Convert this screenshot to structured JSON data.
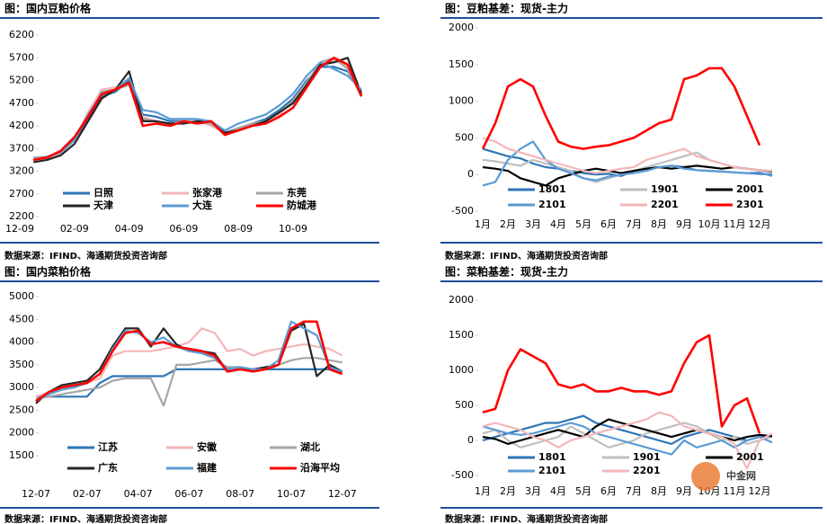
{
  "chart_data": [
    {
      "type": "line",
      "title": "图：国内豆粕价格",
      "source": "数据来源：IFIND、海通期货投资咨询部",
      "categories": [
        "12-09",
        null,
        null,
        null,
        "02-09",
        null,
        null,
        null,
        "04-09",
        null,
        null,
        null,
        "06-09",
        null,
        null,
        null,
        "08-09",
        null,
        null,
        null,
        "10-09",
        null,
        null,
        null,
        null,
        null
      ],
      "ylim": [
        2200,
        6200
      ],
      "yticks": [
        2200,
        2700,
        3200,
        3700,
        4200,
        4700,
        5200,
        5700,
        6200
      ],
      "series": [
        {
          "name": "日照",
          "color": "#2e75b6",
          "values": [
            null,
            3500,
            3500,
            3600,
            3900,
            4350,
            4850,
            4950,
            5200,
            4450,
            4400,
            4300,
            4300,
            4300,
            4250,
            4050,
            4150,
            4250,
            4350,
            4550,
            4800,
            5200,
            5500,
            5500,
            5400,
            4950
          ]
        },
        {
          "name": "张家港",
          "color": "#f4b6b8",
          "values": [
            null,
            3480,
            3500,
            3600,
            3900,
            4500,
            5000,
            5050,
            5100,
            4400,
            4300,
            4250,
            4300,
            4300,
            4200,
            4050,
            4150,
            4200,
            4300,
            4450,
            4750,
            5150,
            5550,
            5650,
            5500,
            4900
          ]
        },
        {
          "name": "东莞",
          "color": "#a6a6a6",
          "values": [
            null,
            3500,
            3520,
            3620,
            3950,
            4400,
            4950,
            5000,
            5100,
            4350,
            4300,
            4250,
            4300,
            4280,
            4250,
            4050,
            4150,
            4250,
            4300,
            4500,
            4750,
            5150,
            5600,
            5700,
            5450,
            4850
          ]
        },
        {
          "name": "天津",
          "color": "#262626",
          "values": [
            null,
            3400,
            3450,
            3550,
            3800,
            4300,
            4800,
            5000,
            5400,
            4300,
            4300,
            4250,
            4250,
            4300,
            4300,
            4050,
            4100,
            4200,
            4300,
            4500,
            4700,
            5100,
            5550,
            5600,
            5700,
            4900
          ]
        },
        {
          "name": "大连",
          "color": "#5b9bd5",
          "values": [
            null,
            3450,
            3520,
            3620,
            3880,
            4450,
            4900,
            5000,
            5250,
            4550,
            4500,
            4350,
            4350,
            4350,
            4300,
            4100,
            4250,
            4350,
            4450,
            4650,
            4900,
            5300,
            5600,
            5450,
            5300,
            5000
          ]
        },
        {
          "name": "防城港",
          "color": "#ff0000",
          "values": [
            null,
            3450,
            3500,
            3650,
            3950,
            4400,
            4900,
            5000,
            5150,
            4200,
            4250,
            4200,
            4300,
            4250,
            4300,
            4000,
            4100,
            4200,
            4250,
            4400,
            4600,
            5050,
            5500,
            5700,
            5550,
            4850
          ]
        }
      ]
    },
    {
      "type": "line",
      "title": "图：豆粕基差：现货-主力",
      "source": "数据来源：IFIND、海通期货投资咨询部",
      "categories": [
        "1月",
        null,
        "2月",
        null,
        "3月",
        null,
        "4月",
        null,
        "5月",
        null,
        "6月",
        null,
        "7月",
        null,
        "8月",
        null,
        "9月",
        null,
        "10月",
        null,
        "11月",
        null,
        "12月",
        null
      ],
      "ylim": [
        -500,
        2000
      ],
      "yticks": [
        -500,
        0,
        500,
        1000,
        1500,
        2000
      ],
      "series": [
        {
          "name": "1801",
          "color": "#2e75b6",
          "values": [
            350,
            300,
            250,
            220,
            150,
            100,
            80,
            50,
            20,
            0,
            10,
            -20,
            50,
            80,
            100,
            120,
            100,
            60,
            50,
            40,
            30,
            20,
            10,
            0
          ]
        },
        {
          "name": "1901",
          "color": "#bfbfbf",
          "values": [
            200,
            180,
            150,
            120,
            200,
            150,
            100,
            50,
            -50,
            -100,
            -50,
            0,
            50,
            100,
            150,
            200,
            250,
            300,
            200,
            150,
            100,
            80,
            60,
            50
          ]
        },
        {
          "name": "2001",
          "color": "#000000",
          "values": [
            100,
            80,
            50,
            -50,
            -100,
            -150,
            -50,
            0,
            50,
            80,
            50,
            20,
            50,
            80,
            100,
            80,
            100,
            120,
            100,
            80,
            100,
            80,
            60,
            40
          ]
        },
        {
          "name": "2101",
          "color": "#5b9bd5",
          "values": [
            -150,
            -100,
            200,
            350,
            450,
            200,
            80,
            20,
            -50,
            -80,
            -30,
            0,
            20,
            50,
            100,
            120,
            80,
            60,
            50,
            40,
            30,
            20,
            30,
            -20
          ]
        },
        {
          "name": "2201",
          "color": "#f4b6b8",
          "values": [
            500,
            450,
            350,
            300,
            250,
            200,
            150,
            100,
            50,
            20,
            50,
            80,
            100,
            200,
            250,
            300,
            350,
            250,
            200,
            150,
            100,
            80,
            60,
            50
          ]
        },
        {
          "name": "2301",
          "color": "#ff0000",
          "values": [
            350,
            700,
            1200,
            1300,
            1200,
            800,
            450,
            380,
            350,
            380,
            400,
            450,
            500,
            600,
            700,
            750,
            1300,
            1350,
            1450,
            1450,
            1200,
            800,
            400,
            null
          ]
        }
      ]
    },
    {
      "type": "line",
      "title": "图：国内菜粕价格",
      "source": "数据来源：IFIND、海通期货投资咨询部",
      "categories": [
        "12-07",
        null,
        null,
        null,
        "02-07",
        null,
        null,
        null,
        "04-07",
        null,
        null,
        null,
        "06-07",
        null,
        null,
        null,
        "08-07",
        null,
        null,
        null,
        "10-07",
        null,
        null,
        null,
        "12-07"
      ],
      "ylim": [
        1500,
        5000
      ],
      "yticks": [
        1500,
        2000,
        2500,
        3000,
        3500,
        4000,
        4500,
        5000
      ],
      "series": [
        {
          "name": "江苏",
          "color": "#2e75b6",
          "values": [
            2800,
            2800,
            2800,
            2800,
            2800,
            3100,
            3250,
            3250,
            3250,
            3250,
            3250,
            3400,
            3400,
            3400,
            3400,
            3400,
            3400,
            3400,
            3400,
            3400,
            3400,
            3400,
            3400,
            3400,
            3350
          ]
        },
        {
          "name": "安徽",
          "color": "#f4b6b8",
          "values": [
            2800,
            2900,
            3000,
            3050,
            3100,
            3200,
            3700,
            3800,
            3800,
            3800,
            3850,
            3900,
            4000,
            4300,
            4200,
            3800,
            3850,
            3700,
            3800,
            3850,
            3900,
            3950,
            3900,
            3850,
            3700
          ]
        },
        {
          "name": "湖北",
          "color": "#a6a6a6",
          "values": [
            2750,
            2800,
            2850,
            2900,
            2950,
            3000,
            3150,
            3200,
            3200,
            3200,
            2600,
            3500,
            3500,
            3550,
            3600,
            3450,
            3450,
            3400,
            3400,
            3500,
            3600,
            3650,
            3650,
            3600,
            3550
          ]
        },
        {
          "name": "广东",
          "color": "#262626",
          "values": [
            2650,
            2900,
            3050,
            3100,
            3150,
            3400,
            3900,
            4300,
            4300,
            3900,
            4300,
            3950,
            3800,
            3800,
            3750,
            3350,
            3400,
            3400,
            3450,
            3500,
            4250,
            4400,
            3250,
            3500,
            3350
          ]
        },
        {
          "name": "福建",
          "color": "#5b9bd5",
          "values": [
            2700,
            2850,
            2950,
            3000,
            3100,
            3300,
            3850,
            4250,
            4200,
            4000,
            4100,
            3900,
            3800,
            3750,
            3650,
            3400,
            3450,
            3400,
            3400,
            3600,
            4450,
            4300,
            4150,
            3450,
            3350
          ]
        },
        {
          "name": "沿海平均",
          "color": "#ff0000",
          "values": [
            2700,
            2900,
            3000,
            3050,
            3100,
            3300,
            3800,
            4200,
            4250,
            3950,
            4000,
            3900,
            3850,
            3800,
            3700,
            3350,
            3400,
            3350,
            3400,
            3500,
            4300,
            4450,
            4450,
            3400,
            3300
          ]
        }
      ]
    },
    {
      "type": "line",
      "title": "图：菜粕基差：现货-主力",
      "source": "数据来源：IFIND、海通期货投资咨询部",
      "categories": [
        "1月",
        null,
        "2月",
        null,
        "3月",
        null,
        "4月",
        null,
        "5月",
        null,
        "6月",
        null,
        "7月",
        null,
        "8月",
        null,
        "9月",
        null,
        "10月",
        null,
        "11月",
        null,
        "12月",
        null
      ],
      "ylim": [
        -500,
        2000
      ],
      "yticks": [
        -500,
        0,
        500,
        1000,
        1500,
        2000
      ],
      "series": [
        {
          "name": "1801",
          "color": "#2e75b6",
          "values": [
            0,
            50,
            100,
            150,
            200,
            250,
            250,
            300,
            350,
            250,
            200,
            150,
            100,
            50,
            0,
            -50,
            50,
            100,
            150,
            100,
            50,
            0,
            50,
            50
          ]
        },
        {
          "name": "1901",
          "color": "#bfbfbf",
          "values": [
            100,
            150,
            0,
            -100,
            -50,
            0,
            50,
            200,
            100,
            0,
            -100,
            -50,
            0,
            100,
            150,
            200,
            250,
            200,
            100,
            0,
            50,
            -50,
            0,
            50
          ]
        },
        {
          "name": "2001",
          "color": "#000000",
          "values": [
            50,
            20,
            -50,
            0,
            50,
            100,
            150,
            100,
            50,
            200,
            300,
            250,
            200,
            150,
            100,
            50,
            100,
            150,
            100,
            50,
            0,
            50,
            80,
            60
          ]
        },
        {
          "name": "2101",
          "color": "#5b9bd5",
          "values": [
            200,
            150,
            100,
            80,
            100,
            150,
            200,
            250,
            200,
            100,
            50,
            0,
            -50,
            -100,
            -150,
            -200,
            0,
            -100,
            -50,
            0,
            -100,
            0,
            50,
            -30
          ]
        },
        {
          "name": "2201",
          "color": "#f4b6b8",
          "values": [
            200,
            250,
            200,
            150,
            50,
            0,
            -100,
            0,
            50,
            100,
            150,
            200,
            250,
            300,
            400,
            350,
            200,
            150,
            100,
            50,
            -50,
            -400,
            0,
            100
          ]
        },
        {
          "color": "#ff0000",
          "values": [
            400,
            450,
            1000,
            1300,
            1200,
            1100,
            800,
            750,
            800,
            700,
            700,
            750,
            700,
            700,
            650,
            700,
            1100,
            1400,
            1500,
            200,
            500,
            600,
            100,
            null
          ]
        }
      ]
    }
  ],
  "watermark": "中金网"
}
